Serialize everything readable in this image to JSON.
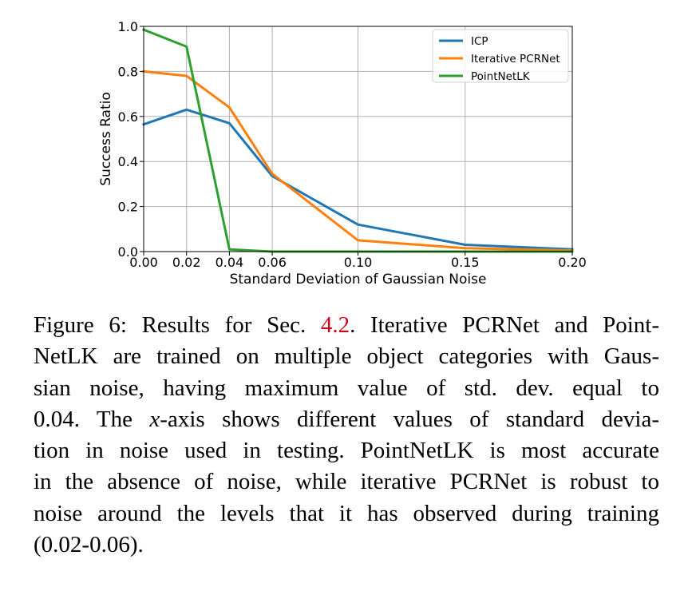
{
  "chart_data": {
    "type": "line",
    "xlabel": "Standard Deviation of Gaussian Noise",
    "ylabel": "Success Ratio",
    "xlim": [
      0.0,
      0.2
    ],
    "ylim": [
      0.0,
      1.0
    ],
    "x_ticks": [
      0.0,
      0.02,
      0.04,
      0.06,
      0.1,
      0.15,
      0.2
    ],
    "x_tick_labels": [
      "0.00",
      "0.02",
      "0.04",
      "0.06",
      "0.10",
      "0.15",
      "0.20"
    ],
    "y_ticks": [
      0.0,
      0.2,
      0.4,
      0.6,
      0.8,
      1.0
    ],
    "y_tick_labels": [
      "0.0",
      "0.2",
      "0.4",
      "0.6",
      "0.8",
      "1.0"
    ],
    "grid": true,
    "legend_position": "top-right",
    "x": [
      0.0,
      0.02,
      0.04,
      0.06,
      0.1,
      0.15,
      0.2
    ],
    "series": [
      {
        "name": "ICP",
        "color": "#1f77b4",
        "values": [
          0.565,
          0.63,
          0.57,
          0.335,
          0.12,
          0.03,
          0.01
        ]
      },
      {
        "name": "Iterative PCRNet",
        "color": "#ff7f0e",
        "values": [
          0.8,
          0.78,
          0.64,
          0.345,
          0.05,
          0.015,
          0.005
        ]
      },
      {
        "name": "PointNetLK",
        "color": "#2ca02c",
        "values": [
          0.985,
          0.91,
          0.01,
          0.0,
          0.0,
          0.0,
          0.0
        ]
      }
    ]
  },
  "caption": {
    "lines": [
      [
        "Figure 6: Results for Sec. ",
        "4.2",
        ". Iterative PCRNet and Point-"
      ],
      [
        "NetLK are trained on multiple object categories with Gaus-"
      ],
      [
        "sian noise, having maximum value of std.  dev.  equal to"
      ],
      [
        "0.04. The ",
        "x",
        "-axis shows different values of standard devia-"
      ],
      [
        "tion in noise used in testing. PointNetLK is most accurate"
      ],
      [
        "in the absence of noise, while iterative PCRNet is robust to"
      ],
      [
        "noise around the levels that it has observed during training"
      ],
      [
        "(0.02-0.06)."
      ]
    ]
  }
}
